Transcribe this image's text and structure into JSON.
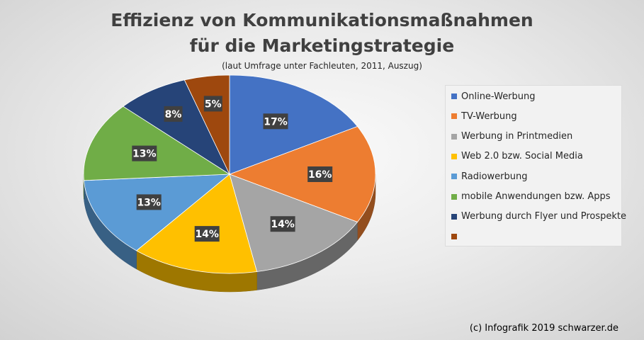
{
  "title_line1": "Effizienz von Kommunikationsmaßnahmen",
  "title_line2": "für die Marketingstrategie",
  "subtitle": "(laut Umfrage unter Fachleuten, 2011, Auszug)",
  "credit": "(c) Infografik 2019 schwarzer.de",
  "chart_data": {
    "type": "pie",
    "title": "Effizienz von Kommunikationsmaßnahmen für die Marketingstrategie",
    "subtitle": "(laut Umfrage unter Fachleuten, 2011, Auszug)",
    "legend_position": "right",
    "slices": [
      {
        "name": "Online-Werbung",
        "value": 17,
        "label": "17%",
        "color": "#4472C4"
      },
      {
        "name": "TV-Werbung",
        "value": 16,
        "label": "16%",
        "color": "#ED7D31"
      },
      {
        "name": "Werbung in Printmedien",
        "value": 14,
        "label": "14%",
        "color": "#A5A5A5"
      },
      {
        "name": "Web 2.0 bzw. Social Media",
        "value": 14,
        "label": "14%",
        "color": "#FFC000"
      },
      {
        "name": "Radiowerbung",
        "value": 13,
        "label": "13%",
        "color": "#5B9BD5"
      },
      {
        "name": "mobile Anwendungen bzw. Apps",
        "value": 13,
        "label": "13%",
        "color": "#70AD47"
      },
      {
        "name": "Werbung durch Flyer und Prospekte",
        "value": 8,
        "label": "8%",
        "color": "#264478"
      },
      {
        "name": "",
        "value": 5,
        "label": "5%",
        "color": "#9E480E"
      }
    ]
  }
}
